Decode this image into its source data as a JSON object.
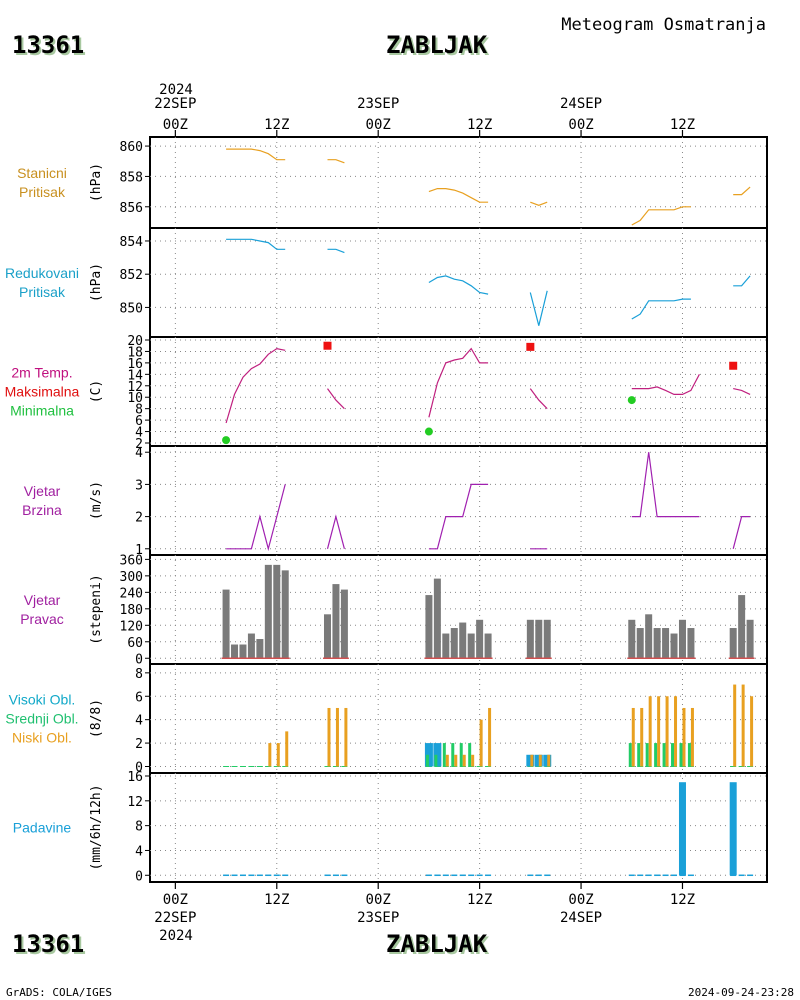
{
  "header": {
    "station_id": "13361",
    "station_name": "ZABLJAK",
    "subtitle": "Meteogram Osmatranja"
  },
  "footer": {
    "station_id": "13361",
    "station_name": "ZABLJAK",
    "credit": "GrADS: COLA/IGES",
    "timestamp": "2024-09-24-23:28"
  },
  "time_axis": {
    "top_year": "2024",
    "bottom_year": "2024",
    "ticks": [
      {
        "h": 0,
        "label": "00Z",
        "date": "22SEP"
      },
      {
        "h": 12,
        "label": "12Z",
        "date": ""
      },
      {
        "h": 24,
        "label": "00Z",
        "date": "23SEP"
      },
      {
        "h": 36,
        "label": "12Z",
        "date": ""
      },
      {
        "h": 48,
        "label": "00Z",
        "date": "24SEP"
      },
      {
        "h": 60,
        "label": "12Z",
        "date": ""
      }
    ],
    "range_hours": [
      -3,
      70
    ]
  },
  "colors": {
    "pressure_station": "#e8a020",
    "pressure_reduced": "#1aa0d8",
    "temperature": "#c0207f",
    "tmax": "#ee1111",
    "tmin": "#22cc22",
    "wind_speed": "#a020b0",
    "wind_dir_bar": "#7a7a7a",
    "wind_dir_base": "#d05050",
    "cloud_high": "#1aa0d8",
    "cloud_mid": "#22cc66",
    "cloud_low": "#e8a020",
    "precip": "#1aa0d8",
    "station_label": "#c89020",
    "reduced_label": "#1aa0c8",
    "temp_label": "#c0107f",
    "max_label": "#e01010",
    "min_label": "#20c040",
    "wind_label": "#a020a0",
    "high_label": "#10a8c8",
    "mid_label": "#20c070",
    "low_label": "#e8a020",
    "precip_label": "#1aa0d8"
  },
  "chart_data": [
    {
      "type": "line",
      "panel": "station_pressure",
      "label_lines": [
        "Stanicni",
        "Pritisak"
      ],
      "ylabel": "(hPa)",
      "ylim": [
        854.8,
        860.4
      ],
      "yticks": [
        856,
        858,
        860
      ],
      "segments": [
        [
          [
            6,
            859.8
          ],
          [
            7,
            859.8
          ],
          [
            8,
            859.8
          ],
          [
            9,
            859.8
          ],
          [
            10,
            859.7
          ],
          [
            11,
            859.5
          ],
          [
            12,
            859.1
          ],
          [
            13,
            859.1
          ]
        ],
        [
          [
            18,
            859.1
          ],
          [
            19,
            859.1
          ],
          [
            20,
            858.9
          ]
        ],
        [
          [
            30,
            857.0
          ],
          [
            31,
            857.2
          ],
          [
            32,
            857.2
          ],
          [
            33,
            857.1
          ],
          [
            34,
            856.9
          ],
          [
            35,
            856.6
          ],
          [
            36,
            856.3
          ],
          [
            37,
            856.3
          ]
        ],
        [
          [
            42,
            856.3
          ],
          [
            43,
            856.1
          ],
          [
            44,
            856.3
          ]
        ],
        [
          [
            54,
            854.8
          ],
          [
            55,
            855.1
          ],
          [
            56,
            855.8
          ],
          [
            57,
            855.8
          ],
          [
            58,
            855.8
          ],
          [
            59,
            855.8
          ],
          [
            60,
            856.0
          ],
          [
            61,
            856.0
          ]
        ],
        [
          [
            66,
            856.8
          ],
          [
            67,
            856.8
          ],
          [
            68,
            857.3
          ]
        ]
      ]
    },
    {
      "type": "line",
      "panel": "reduced_pressure",
      "label_lines": [
        "Redukovani",
        "Pritisak"
      ],
      "ylabel": "(hPa)",
      "ylim": [
        848.4,
        854.6
      ],
      "yticks": [
        850,
        852,
        854
      ],
      "segments": [
        [
          [
            6,
            854.1
          ],
          [
            7,
            854.1
          ],
          [
            8,
            854.1
          ],
          [
            9,
            854.1
          ],
          [
            10,
            854.0
          ],
          [
            11,
            853.9
          ],
          [
            12,
            853.5
          ],
          [
            13,
            853.5
          ]
        ],
        [
          [
            18,
            853.5
          ],
          [
            19,
            853.5
          ],
          [
            20,
            853.3
          ]
        ],
        [
          [
            30,
            851.5
          ],
          [
            31,
            851.8
          ],
          [
            32,
            851.9
          ],
          [
            33,
            851.7
          ],
          [
            34,
            851.6
          ],
          [
            35,
            851.3
          ],
          [
            36,
            850.9
          ],
          [
            37,
            850.8
          ]
        ],
        [
          [
            42,
            850.9
          ],
          [
            43,
            848.9
          ],
          [
            44,
            851.0
          ]
        ],
        [
          [
            54,
            849.3
          ],
          [
            55,
            849.6
          ],
          [
            56,
            850.4
          ],
          [
            57,
            850.4
          ],
          [
            58,
            850.4
          ],
          [
            59,
            850.4
          ],
          [
            60,
            850.5
          ],
          [
            61,
            850.5
          ]
        ],
        [
          [
            66,
            851.3
          ],
          [
            67,
            851.3
          ],
          [
            68,
            851.9
          ]
        ]
      ]
    },
    {
      "type": "line",
      "panel": "temperature",
      "label_lines": [
        "2m Temp.",
        "Maksimalna",
        "Minimalna"
      ],
      "ylabel": "(C)",
      "ylim": [
        2,
        20
      ],
      "yticks": [
        2,
        4,
        6,
        8,
        10,
        12,
        14,
        16,
        18,
        20
      ],
      "segments": [
        [
          [
            6,
            5.5
          ],
          [
            7,
            10.5
          ],
          [
            8,
            13.5
          ],
          [
            9,
            15.0
          ],
          [
            10,
            15.8
          ],
          [
            11,
            17.5
          ],
          [
            12,
            18.5
          ],
          [
            13,
            18.2
          ]
        ],
        [
          [
            18,
            11.5
          ],
          [
            19,
            9.5
          ],
          [
            20,
            8.0
          ]
        ],
        [
          [
            30,
            6.5
          ],
          [
            31,
            12.5
          ],
          [
            32,
            16.0
          ],
          [
            33,
            16.5
          ],
          [
            34,
            16.8
          ],
          [
            35,
            18.5
          ],
          [
            36,
            16.0
          ],
          [
            37,
            16.0
          ]
        ],
        [
          [
            42,
            11.5
          ],
          [
            43,
            9.5
          ],
          [
            44,
            8.0
          ]
        ],
        [
          [
            54,
            11.5
          ],
          [
            55,
            11.5
          ],
          [
            56,
            11.5
          ],
          [
            57,
            11.8
          ],
          [
            58,
            11.2
          ],
          [
            59,
            10.5
          ],
          [
            60,
            10.5
          ],
          [
            61,
            11.2
          ],
          [
            62,
            14.0
          ]
        ],
        [
          [
            66,
            11.5
          ],
          [
            67,
            11.2
          ],
          [
            68,
            10.5
          ]
        ]
      ],
      "tmax": [
        [
          18,
          19.0
        ],
        [
          42,
          18.8
        ],
        [
          66,
          15.5
        ]
      ],
      "tmin": [
        [
          6,
          2.5
        ],
        [
          30,
          4.0
        ],
        [
          54,
          9.5
        ]
      ]
    },
    {
      "type": "line",
      "panel": "wind_speed",
      "label_lines": [
        "Vjetar",
        "Brzina"
      ],
      "ylabel": "(m/s)",
      "ylim": [
        0.9,
        4.1
      ],
      "yticks": [
        1,
        2,
        3,
        4
      ],
      "segments": [
        [
          [
            6,
            1
          ],
          [
            7,
            1
          ],
          [
            8,
            1
          ],
          [
            9,
            1
          ],
          [
            10,
            2
          ],
          [
            11,
            1
          ],
          [
            12,
            2
          ],
          [
            13,
            3
          ]
        ],
        [
          [
            18,
            1
          ],
          [
            19,
            2
          ],
          [
            20,
            1
          ]
        ],
        [
          [
            30,
            1
          ],
          [
            31,
            1
          ],
          [
            32,
            2
          ],
          [
            33,
            2
          ],
          [
            34,
            2
          ],
          [
            35,
            3
          ],
          [
            36,
            3
          ],
          [
            37,
            3
          ]
        ],
        [
          [
            42,
            1
          ],
          [
            43,
            1
          ],
          [
            44,
            1
          ]
        ],
        [
          [
            54,
            2
          ],
          [
            55,
            2
          ],
          [
            56,
            4
          ],
          [
            57,
            2
          ],
          [
            58,
            2
          ],
          [
            59,
            2
          ],
          [
            60,
            2
          ],
          [
            61,
            2
          ],
          [
            62,
            2
          ]
        ],
        [
          [
            66,
            1
          ],
          [
            67,
            2
          ],
          [
            68,
            2
          ]
        ]
      ]
    },
    {
      "type": "bar",
      "panel": "wind_direction",
      "label_lines": [
        "Vjetar",
        "Pravac"
      ],
      "ylabel": "(stepeni)",
      "ylim": [
        -10,
        365
      ],
      "yticks": [
        0,
        60,
        120,
        180,
        240,
        300,
        360
      ],
      "points": [
        [
          6,
          250
        ],
        [
          7,
          50
        ],
        [
          8,
          50
        ],
        [
          9,
          90
        ],
        [
          10,
          70
        ],
        [
          11,
          340
        ],
        [
          12,
          340
        ],
        [
          13,
          320
        ],
        [
          18,
          160
        ],
        [
          19,
          270
        ],
        [
          20,
          250
        ],
        [
          30,
          230
        ],
        [
          31,
          290
        ],
        [
          32,
          90
        ],
        [
          33,
          110
        ],
        [
          34,
          130
        ],
        [
          35,
          90
        ],
        [
          36,
          140
        ],
        [
          37,
          90
        ],
        [
          42,
          140
        ],
        [
          43,
          140
        ],
        [
          44,
          140
        ],
        [
          54,
          140
        ],
        [
          55,
          110
        ],
        [
          56,
          160
        ],
        [
          57,
          110
        ],
        [
          58,
          110
        ],
        [
          59,
          90
        ],
        [
          60,
          140
        ],
        [
          61,
          110
        ],
        [
          66,
          110
        ],
        [
          67,
          230
        ],
        [
          68,
          140
        ]
      ]
    },
    {
      "type": "bar",
      "panel": "clouds",
      "label_lines": [
        "Visoki Obl.",
        "Srednji Obl.",
        "Niski Obl."
      ],
      "ylabel": "(8/8)",
      "ylim": [
        -0.3,
        8.5
      ],
      "yticks": [
        0,
        2,
        4,
        6,
        8
      ],
      "series": [
        {
          "name": "Visoki Obl.",
          "points": [
            [
              30,
              2
            ],
            [
              31,
              2
            ],
            [
              42,
              1
            ],
            [
              43,
              1
            ],
            [
              44,
              1
            ]
          ]
        },
        {
          "name": "Srednji Obl.",
          "points": [
            [
              30,
              1
            ],
            [
              31,
              1
            ],
            [
              32,
              2
            ],
            [
              33,
              2
            ],
            [
              34,
              2
            ],
            [
              35,
              2
            ],
            [
              54,
              2
            ],
            [
              55,
              2
            ],
            [
              56,
              2
            ],
            [
              57,
              2
            ],
            [
              58,
              2
            ],
            [
              59,
              2
            ],
            [
              60,
              2
            ],
            [
              61,
              2
            ]
          ]
        },
        {
          "name": "Niski Obl.",
          "points": [
            [
              6,
              0
            ],
            [
              7,
              0
            ],
            [
              8,
              0
            ],
            [
              9,
              0
            ],
            [
              10,
              0
            ],
            [
              11,
              2
            ],
            [
              12,
              2
            ],
            [
              13,
              3
            ],
            [
              18,
              5
            ],
            [
              19,
              5
            ],
            [
              20,
              5
            ],
            [
              30,
              0
            ],
            [
              31,
              0
            ],
            [
              32,
              1
            ],
            [
              33,
              1
            ],
            [
              34,
              1
            ],
            [
              35,
              1
            ],
            [
              36,
              4
            ],
            [
              37,
              5
            ],
            [
              42,
              1
            ],
            [
              43,
              1
            ],
            [
              44,
              1
            ],
            [
              54,
              5
            ],
            [
              55,
              5
            ],
            [
              56,
              6
            ],
            [
              57,
              6
            ],
            [
              58,
              6
            ],
            [
              59,
              6
            ],
            [
              60,
              5
            ],
            [
              61,
              5
            ],
            [
              66,
              7
            ],
            [
              67,
              7
            ],
            [
              68,
              6
            ]
          ]
        }
      ]
    },
    {
      "type": "bar",
      "panel": "precipitation",
      "label_lines": [
        "Padavine"
      ],
      "ylabel": "(mm/6h/12h)",
      "ylim": [
        -0.6,
        16
      ],
      "yticks": [
        0,
        4,
        8,
        12,
        16
      ],
      "points": [
        [
          6,
          0
        ],
        [
          7,
          0
        ],
        [
          8,
          0
        ],
        [
          9,
          0
        ],
        [
          10,
          0
        ],
        [
          11,
          0
        ],
        [
          12,
          0
        ],
        [
          13,
          0
        ],
        [
          18,
          0
        ],
        [
          19,
          0
        ],
        [
          20,
          0
        ],
        [
          30,
          0
        ],
        [
          31,
          0
        ],
        [
          32,
          0
        ],
        [
          33,
          0
        ],
        [
          34,
          0
        ],
        [
          35,
          0
        ],
        [
          36,
          0
        ],
        [
          37,
          0
        ],
        [
          42,
          0
        ],
        [
          43,
          0
        ],
        [
          44,
          0
        ],
        [
          54,
          0
        ],
        [
          55,
          0
        ],
        [
          56,
          0
        ],
        [
          57,
          0
        ],
        [
          58,
          0
        ],
        [
          59,
          0
        ],
        [
          60,
          15
        ],
        [
          61,
          0
        ],
        [
          66,
          15
        ],
        [
          67,
          0
        ],
        [
          68,
          0
        ]
      ]
    }
  ]
}
